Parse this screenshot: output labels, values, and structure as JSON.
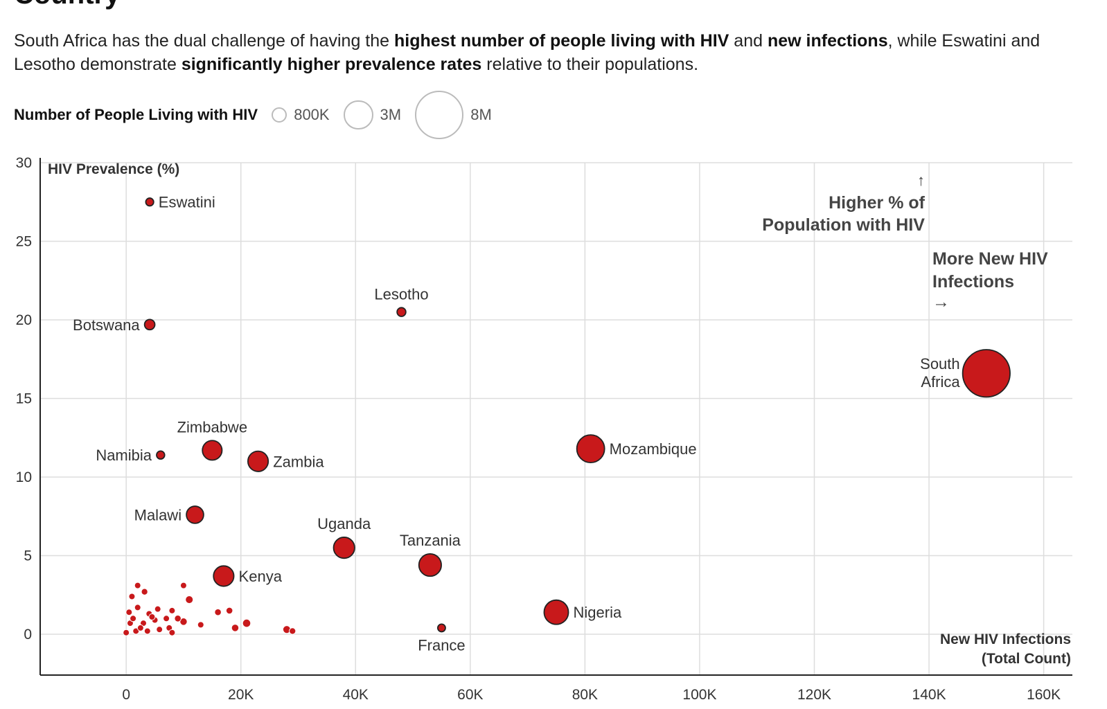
{
  "header": {
    "title": "Country",
    "subtitle_parts": [
      {
        "text": "South Africa has the dual challenge of having the ",
        "bold": false
      },
      {
        "text": "highest number of people living with HIV",
        "bold": true
      },
      {
        "text": " and ",
        "bold": false
      },
      {
        "text": "new infections",
        "bold": true
      },
      {
        "text": ", while Eswatini and Lesotho demonstrate ",
        "bold": false
      },
      {
        "text": "significantly higher prevalence rates",
        "bold": true
      },
      {
        "text": " relative to their populations.",
        "bold": false
      }
    ]
  },
  "size_legend": {
    "title": "Number of People Living with HIV",
    "items": [
      {
        "label": "800K",
        "value_millions": 0.8
      },
      {
        "label": "3M",
        "value_millions": 3
      },
      {
        "label": "8M",
        "value_millions": 8
      }
    ]
  },
  "chart_data": {
    "type": "scatter",
    "ylabel": "HIV Prevalence (%)",
    "xlabel": "New HIV Infections (Total Count)",
    "xlabel_lines": [
      "New HIV Infections",
      "(Total Count)"
    ],
    "xlim": [
      -15000,
      165000
    ],
    "ylim": [
      -2.6,
      30
    ],
    "x_ticks": [
      0,
      20000,
      40000,
      60000,
      80000,
      100000,
      120000,
      140000,
      160000
    ],
    "x_tick_labels": [
      "0",
      "20K",
      "40K",
      "60K",
      "80K",
      "100K",
      "120K",
      "140K",
      "160K"
    ],
    "y_ticks": [
      0,
      5,
      10,
      15,
      20,
      25,
      30
    ],
    "y_tick_labels": [
      "0",
      "5",
      "10",
      "15",
      "20",
      "25",
      "30"
    ],
    "grid": true,
    "size_encoding": "people living with HIV (millions)",
    "colors": {
      "point": "#c8191b",
      "point_stroke": "#222222",
      "grid": "#dddddd",
      "axis": "#222222"
    },
    "annotations": [
      {
        "text_lines": [
          "↑",
          "Higher % of",
          "Population with HIV"
        ]
      },
      {
        "text_lines": [
          "More New HIV",
          "Infections",
          "→"
        ]
      }
    ],
    "points": [
      {
        "label": "Eswatini",
        "x": 4100,
        "y": 27.5,
        "size": 0.21,
        "label_pos": "right"
      },
      {
        "label": "Botswana",
        "x": 4100,
        "y": 19.7,
        "size": 0.36,
        "label_pos": "left"
      },
      {
        "label": "Lesotho",
        "x": 48000,
        "y": 20.5,
        "size": 0.26,
        "label_pos": "top"
      },
      {
        "label": "South Africa",
        "label_lines": [
          "South",
          "Africa"
        ],
        "x": 150000,
        "y": 16.6,
        "size": 7.6,
        "label_pos": "left"
      },
      {
        "label": "Zimbabwe",
        "x": 15000,
        "y": 11.7,
        "size": 1.3,
        "label_pos": "top"
      },
      {
        "label": "Namibia",
        "x": 6000,
        "y": 11.4,
        "size": 0.22,
        "label_pos": "left"
      },
      {
        "label": "Zambia",
        "x": 23000,
        "y": 11.0,
        "size": 1.4,
        "label_pos": "right"
      },
      {
        "label": "Mozambique",
        "x": 81000,
        "y": 11.8,
        "size": 2.6,
        "label_pos": "right"
      },
      {
        "label": "Malawi",
        "x": 12000,
        "y": 7.6,
        "size": 1.0,
        "label_pos": "left"
      },
      {
        "label": "Uganda",
        "x": 38000,
        "y": 5.5,
        "size": 1.5,
        "label_pos": "top"
      },
      {
        "label": "Tanzania",
        "x": 53000,
        "y": 4.4,
        "size": 1.7,
        "label_pos": "top"
      },
      {
        "label": "Kenya",
        "x": 17000,
        "y": 3.7,
        "size": 1.4,
        "label_pos": "right"
      },
      {
        "label": "Nigeria",
        "x": 75000,
        "y": 1.4,
        "size": 2.0,
        "label_pos": "right"
      },
      {
        "label": "France",
        "x": 55000,
        "y": 0.4,
        "size": 0.2,
        "label_pos": "bottom"
      },
      {
        "x": 10000,
        "y": 3.1,
        "size": 0.1
      },
      {
        "x": 11000,
        "y": 2.2,
        "size": 0.2
      },
      {
        "x": 2000,
        "y": 3.1,
        "size": 0.08
      },
      {
        "x": 3200,
        "y": 2.7,
        "size": 0.14
      },
      {
        "x": 1000,
        "y": 2.4,
        "size": 0.06
      },
      {
        "x": 16000,
        "y": 1.4,
        "size": 0.15
      },
      {
        "x": 18000,
        "y": 1.5,
        "size": 0.15
      },
      {
        "x": 19000,
        "y": 0.4,
        "size": 0.18
      },
      {
        "x": 21000,
        "y": 0.7,
        "size": 0.22
      },
      {
        "x": 13000,
        "y": 0.6,
        "size": 0.1
      },
      {
        "x": 28000,
        "y": 0.3,
        "size": 0.2
      },
      {
        "x": 29000,
        "y": 0.2,
        "size": 0.14
      },
      {
        "x": 8000,
        "y": 1.5,
        "size": 0.1
      },
      {
        "x": 5500,
        "y": 1.6,
        "size": 0.12
      },
      {
        "x": 4000,
        "y": 1.3,
        "size": 0.1
      },
      {
        "x": 2000,
        "y": 1.7,
        "size": 0.08
      },
      {
        "x": 500,
        "y": 1.4,
        "size": 0.08
      },
      {
        "x": 9000,
        "y": 1.0,
        "size": 0.15
      },
      {
        "x": 10000,
        "y": 0.8,
        "size": 0.18
      },
      {
        "x": 7000,
        "y": 1.0,
        "size": 0.12
      },
      {
        "x": 5000,
        "y": 0.9,
        "size": 0.1
      },
      {
        "x": 3000,
        "y": 0.7,
        "size": 0.1
      },
      {
        "x": 700,
        "y": 0.7,
        "size": 0.07
      },
      {
        "x": 7500,
        "y": 0.4,
        "size": 0.12
      },
      {
        "x": 5800,
        "y": 0.3,
        "size": 0.1
      },
      {
        "x": 3700,
        "y": 0.2,
        "size": 0.09
      },
      {
        "x": 1700,
        "y": 0.2,
        "size": 0.07
      },
      {
        "x": 0,
        "y": 0.1,
        "size": 0.05
      },
      {
        "x": 8000,
        "y": 0.1,
        "size": 0.06
      },
      {
        "x": 4500,
        "y": 1.1,
        "size": 0.09
      },
      {
        "x": 1200,
        "y": 1.0,
        "size": 0.06
      },
      {
        "x": 2500,
        "y": 0.4,
        "size": 0.06
      }
    ]
  }
}
